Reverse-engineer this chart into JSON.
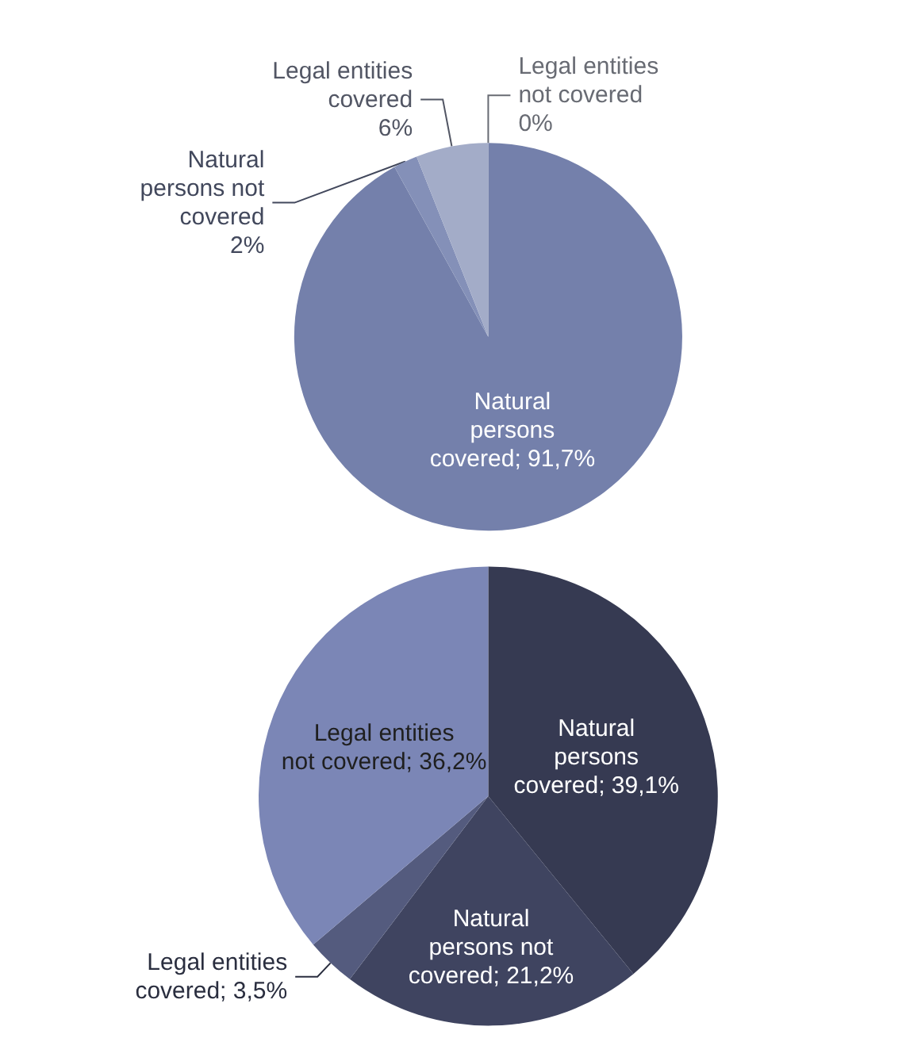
{
  "chart_data": [
    {
      "type": "pie",
      "categories": [
        "Natural persons covered",
        "Natural persons not covered",
        "Legal entities covered",
        "Legal entities not covered"
      ],
      "values": [
        91.7,
        2,
        6,
        0
      ],
      "colors": [
        "#7480ab",
        "#8490b8",
        "#a3acc8",
        "#d0d5e6"
      ],
      "value_labels": [
        "91,7%",
        "2%",
        "6%",
        "0%"
      ]
    },
    {
      "type": "pie",
      "categories": [
        "Natural persons covered",
        "Natural persons not covered",
        "Legal entities covered",
        "Legal entities not covered"
      ],
      "values": [
        39.1,
        21.2,
        3.5,
        36.2
      ],
      "colors": [
        "#363a52",
        "#3f4460",
        "#545b7e",
        "#7b86b6"
      ],
      "value_labels": [
        "39,1%",
        "21,2%",
        "3,5%",
        "36,2%"
      ]
    }
  ]
}
